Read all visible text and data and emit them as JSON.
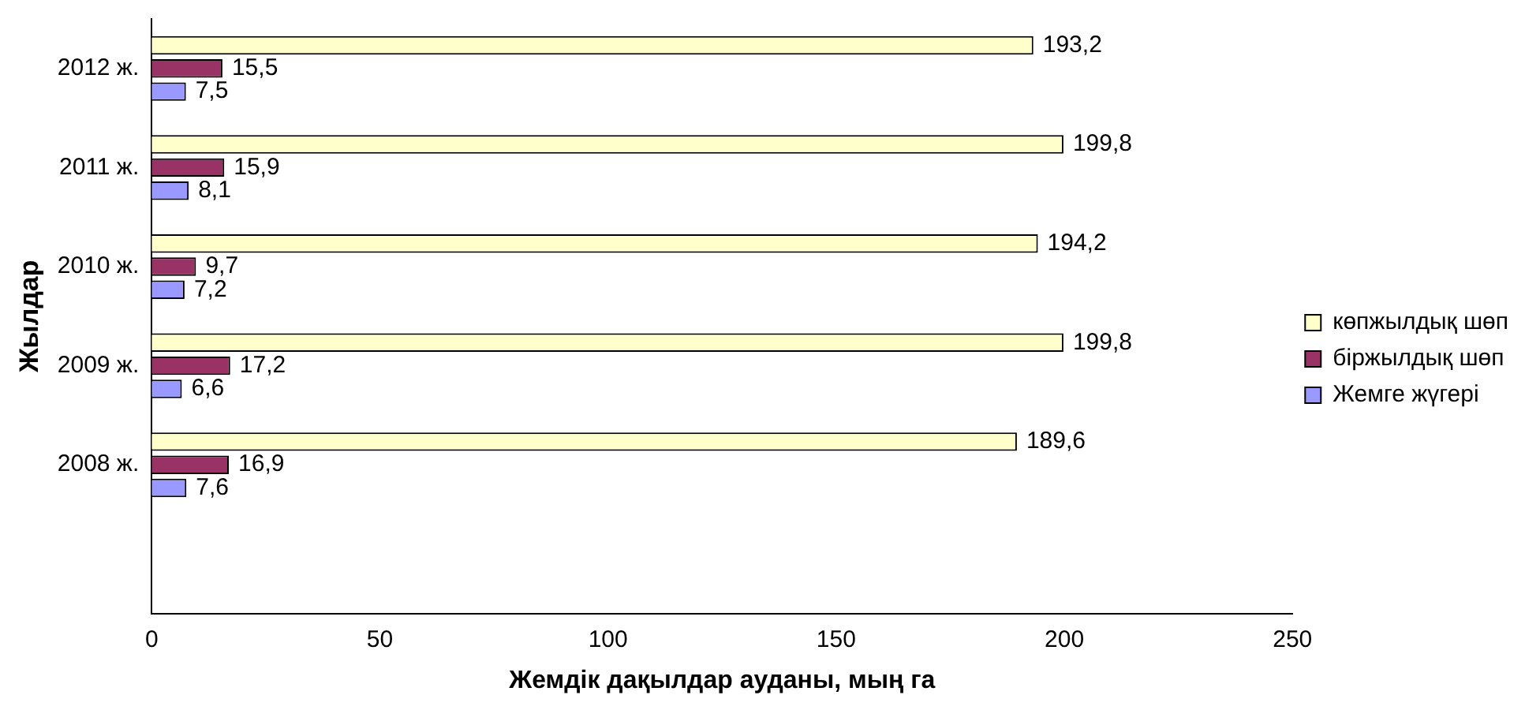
{
  "chart_data": {
    "type": "bar",
    "orientation": "horizontal",
    "xlabel": "Жемдік дақылдар ауданы, мың га",
    "ylabel": "Жылдар",
    "categories": [
      "2012 ж.",
      "2011 ж.",
      "2010 ж.",
      "2009 ж.",
      "2008 ж.",
      null
    ],
    "series": [
      {
        "name": "көпжылдық шөп",
        "color": "#ffffcc",
        "values": [
          193.2,
          199.8,
          194.2,
          199.8,
          189.6,
          null
        ],
        "value_labels": [
          "193,2",
          "199,8",
          "194,2",
          "199,8",
          "189,6",
          null
        ]
      },
      {
        "name": "біржылдық шөп",
        "color": "#993366",
        "values": [
          15.5,
          15.9,
          9.7,
          17.2,
          16.9,
          null
        ],
        "value_labels": [
          "15,5",
          "15,9",
          "9,7",
          "17,2",
          "16,9",
          null
        ]
      },
      {
        "name": "Жемге жүгері",
        "color": "#9999ff",
        "values": [
          7.5,
          8.1,
          7.2,
          6.6,
          7.6,
          null
        ],
        "value_labels": [
          "7,5",
          "8,1",
          "7,2",
          "6,6",
          "7,6",
          null
        ]
      }
    ],
    "xlim": [
      0,
      250
    ],
    "xticks": [
      0,
      50,
      100,
      150,
      200,
      250
    ],
    "grid": false,
    "legend": "right"
  }
}
